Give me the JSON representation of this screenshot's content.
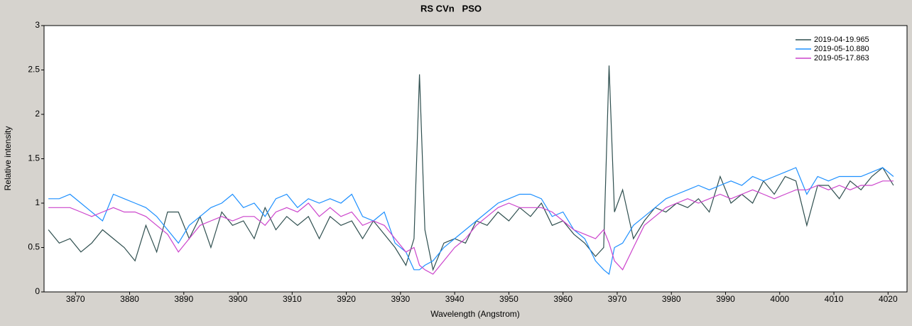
{
  "chart_data": {
    "type": "line",
    "title": "RS CVn   PSO",
    "x_label": "Wavelength (Angstrom)",
    "y_label": "Relative intensity",
    "xlim": [
      3864.2,
      4023.5
    ],
    "ylim": [
      0,
      3
    ],
    "xticks": [
      3870,
      3880,
      3890,
      3900,
      3910,
      3920,
      3930,
      3940,
      3950,
      3960,
      3970,
      3980,
      3990,
      4000,
      4010,
      4020
    ],
    "yticks": [
      0,
      0.5,
      1,
      1.5,
      2,
      2.5,
      3
    ],
    "grid": false,
    "legend": "upper right",
    "x": [
      3865,
      3867,
      3869,
      3871,
      3873,
      3875,
      3877,
      3879,
      3881,
      3883,
      3885,
      3887,
      3889,
      3891,
      3893,
      3895,
      3897,
      3899,
      3901,
      3903,
      3905,
      3907,
      3909,
      3911,
      3913,
      3915,
      3917,
      3919,
      3921,
      3923,
      3925,
      3927,
      3929,
      3931,
      3932.5,
      3933.5,
      3934.5,
      3936,
      3938,
      3940,
      3942,
      3944,
      3946,
      3948,
      3950,
      3952,
      3954,
      3956,
      3958,
      3960,
      3962,
      3964,
      3966,
      3967.5,
      3968.5,
      3969.5,
      3971,
      3973,
      3975,
      3977,
      3979,
      3981,
      3983,
      3985,
      3987,
      3989,
      3991,
      3993,
      3995,
      3997,
      3999,
      4001,
      4003,
      4005,
      4007,
      4009,
      4011,
      4013,
      4015,
      4017,
      4019,
      4021
    ],
    "series": [
      {
        "name": "2019-04-19.965",
        "color": "#2f4f4f",
        "values": [
          0.7,
          0.55,
          0.6,
          0.45,
          0.55,
          0.7,
          0.6,
          0.5,
          0.35,
          0.75,
          0.45,
          0.9,
          0.9,
          0.6,
          0.85,
          0.5,
          0.9,
          0.75,
          0.8,
          0.6,
          0.95,
          0.7,
          0.85,
          0.75,
          0.85,
          0.6,
          0.85,
          0.75,
          0.8,
          0.6,
          0.8,
          0.65,
          0.5,
          0.3,
          0.6,
          2.45,
          0.7,
          0.25,
          0.55,
          0.6,
          0.55,
          0.8,
          0.75,
          0.9,
          0.8,
          0.95,
          0.85,
          1.0,
          0.75,
          0.8,
          0.65,
          0.55,
          0.4,
          0.5,
          2.55,
          0.9,
          1.15,
          0.6,
          0.8,
          0.95,
          0.9,
          1.0,
          0.95,
          1.05,
          0.9,
          1.3,
          1.0,
          1.1,
          1.0,
          1.25,
          1.1,
          1.3,
          1.25,
          0.75,
          1.2,
          1.2,
          1.05,
          1.25,
          1.15,
          1.3,
          1.4,
          1.2
        ]
      },
      {
        "name": "2019-05-10.880",
        "color": "#1e90ff",
        "values": [
          1.05,
          1.05,
          1.1,
          1.0,
          0.9,
          0.8,
          1.1,
          1.05,
          1.0,
          0.95,
          0.85,
          0.7,
          0.55,
          0.75,
          0.85,
          0.95,
          1.0,
          1.1,
          0.95,
          1.0,
          0.85,
          1.05,
          1.1,
          0.95,
          1.05,
          1.0,
          1.05,
          1.0,
          1.1,
          0.85,
          0.8,
          0.9,
          0.55,
          0.45,
          0.25,
          0.25,
          0.3,
          0.35,
          0.5,
          0.6,
          0.7,
          0.8,
          0.9,
          1.0,
          1.05,
          1.1,
          1.1,
          1.05,
          0.85,
          0.9,
          0.7,
          0.6,
          0.35,
          0.25,
          0.2,
          0.5,
          0.55,
          0.75,
          0.85,
          0.95,
          1.05,
          1.1,
          1.15,
          1.2,
          1.15,
          1.2,
          1.25,
          1.2,
          1.3,
          1.25,
          1.3,
          1.35,
          1.4,
          1.1,
          1.3,
          1.25,
          1.3,
          1.3,
          1.3,
          1.35,
          1.4,
          1.3
        ]
      },
      {
        "name": "2019-05-17.863",
        "color": "#cc44cc",
        "values": [
          0.95,
          0.95,
          0.95,
          0.9,
          0.85,
          0.9,
          0.95,
          0.9,
          0.9,
          0.85,
          0.75,
          0.65,
          0.45,
          0.6,
          0.75,
          0.8,
          0.85,
          0.8,
          0.85,
          0.85,
          0.75,
          0.9,
          0.95,
          0.9,
          1.0,
          0.85,
          0.95,
          0.85,
          0.9,
          0.75,
          0.8,
          0.75,
          0.6,
          0.45,
          0.5,
          0.3,
          0.25,
          0.2,
          0.35,
          0.5,
          0.6,
          0.75,
          0.85,
          0.95,
          1.0,
          0.95,
          0.95,
          0.95,
          0.9,
          0.8,
          0.7,
          0.65,
          0.6,
          0.7,
          0.55,
          0.35,
          0.25,
          0.5,
          0.75,
          0.85,
          0.95,
          1.0,
          1.05,
          1.0,
          1.05,
          1.1,
          1.05,
          1.1,
          1.15,
          1.1,
          1.05,
          1.1,
          1.15,
          1.15,
          1.2,
          1.15,
          1.2,
          1.15,
          1.2,
          1.2,
          1.25,
          1.25
        ]
      }
    ]
  }
}
